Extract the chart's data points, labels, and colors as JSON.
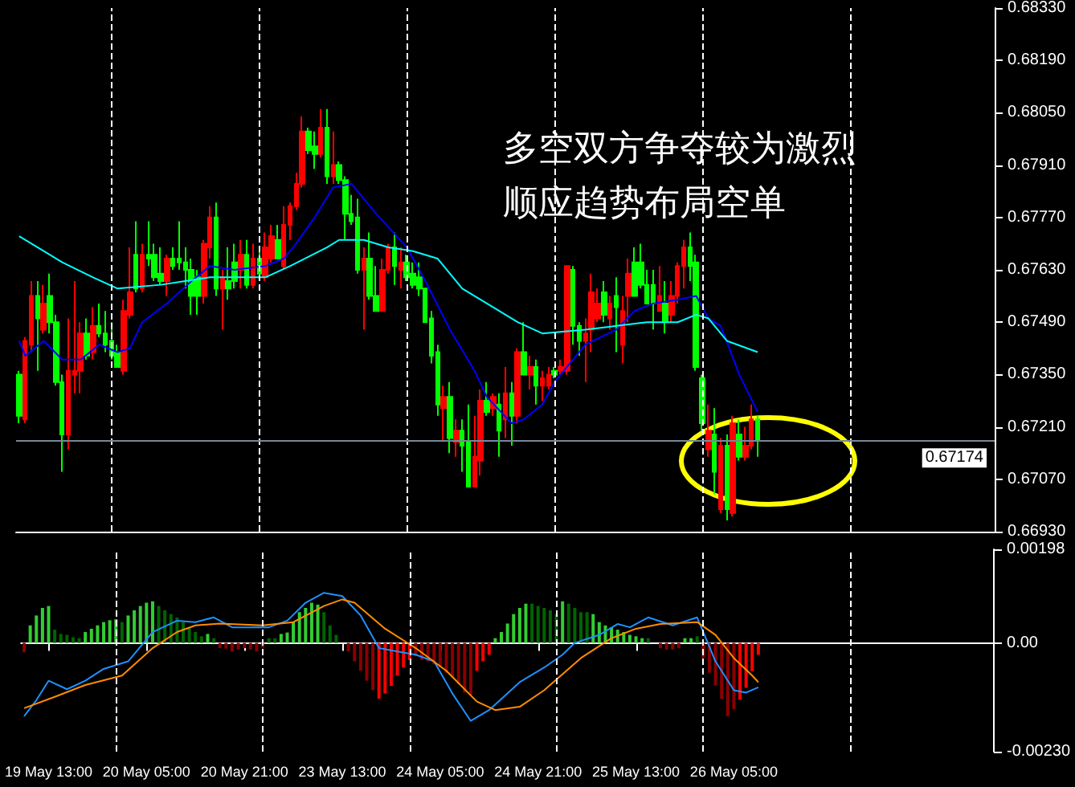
{
  "chart_data": [
    {
      "type": "candlestick",
      "categories": [
        null,
        null,
        null,
        null,
        null,
        null,
        null,
        null,
        null,
        null,
        null,
        null,
        null,
        null,
        null,
        null,
        null,
        null,
        null,
        null,
        null,
        null,
        null,
        null,
        null,
        null,
        null,
        null,
        null,
        null,
        null,
        null,
        null,
        null,
        null,
        null,
        null,
        null,
        null,
        null,
        null,
        null,
        null,
        null,
        null,
        null,
        null,
        null,
        null,
        null,
        null,
        null,
        null,
        null,
        null,
        null,
        null,
        null,
        null,
        null,
        null,
        null,
        null,
        null,
        null,
        null,
        null,
        null,
        null,
        null,
        null,
        null,
        null,
        null,
        null,
        null,
        null,
        null,
        null,
        null,
        null,
        null,
        null,
        null,
        null,
        null,
        null,
        null,
        null,
        null,
        null,
        null,
        null,
        null,
        null,
        null,
        null,
        null,
        null,
        null,
        null,
        null,
        null,
        null,
        null,
        null,
        null,
        null,
        null,
        null,
        null,
        null,
        null,
        null,
        null,
        null,
        null,
        null,
        null,
        null,
        null,
        null,
        null,
        null,
        null,
        null,
        null,
        null,
        null,
        null,
        null,
        null,
        null,
        null,
        null,
        null,
        null,
        null,
        null,
        null,
        null,
        null,
        null,
        null,
        null,
        null,
        null,
        null,
        null,
        null,
        null,
        null,
        null,
        null,
        null,
        null,
        null,
        null,
        null
      ],
      "ohlc": [
        [
          0.6735,
          0.6736,
          0.6722,
          0.6724
        ],
        [
          0.6723,
          0.6745,
          0.6722,
          0.6744
        ],
        [
          0.6743,
          0.676,
          0.6741,
          0.6756
        ],
        [
          0.6756,
          0.676,
          0.6736,
          0.675
        ],
        [
          0.6747,
          0.6759,
          0.6746,
          0.6754
        ],
        [
          0.6756,
          0.6762,
          0.6746,
          0.6749
        ],
        [
          0.6749,
          0.6751,
          0.6732,
          0.6733
        ],
        [
          0.6733,
          0.6735,
          0.6709,
          0.6719
        ],
        [
          0.6719,
          0.675,
          0.6715,
          0.6736
        ],
        [
          0.6735,
          0.676,
          0.673,
          0.6736
        ],
        [
          0.6736,
          0.6749,
          0.673,
          0.6746
        ],
        [
          0.6746,
          0.675,
          0.6739,
          0.674
        ],
        [
          0.6741,
          0.6753,
          0.6739,
          0.6748
        ],
        [
          0.6748,
          0.6754,
          0.6745,
          0.6746
        ],
        [
          0.6746,
          0.6752,
          0.6741,
          0.6743
        ],
        [
          0.6744,
          0.6749,
          0.6739,
          0.674
        ],
        [
          0.6741,
          0.6743,
          0.6737,
          0.6737
        ],
        [
          0.6736,
          0.6755,
          0.6735,
          0.6752
        ],
        [
          0.6751,
          0.6769,
          0.675,
          0.6757
        ],
        [
          0.6767,
          0.6776,
          0.6757,
          0.6758
        ],
        [
          0.6758,
          0.677,
          0.6757,
          0.6767
        ],
        [
          0.6767,
          0.6776,
          0.6764,
          0.6766
        ],
        [
          0.6767,
          0.677,
          0.676,
          0.6761
        ],
        [
          0.6762,
          0.6769,
          0.6759,
          0.676
        ],
        [
          0.676,
          0.6767,
          0.6756,
          0.6766
        ],
        [
          0.6766,
          0.6769,
          0.6763,
          0.6764
        ],
        [
          0.6766,
          0.6776,
          0.6763,
          0.6765
        ],
        [
          0.6765,
          0.6769,
          0.6758,
          0.6763
        ],
        [
          0.6763,
          0.6766,
          0.6751,
          0.6756
        ],
        [
          0.6761,
          0.6763,
          0.6751,
          0.6756
        ],
        [
          0.6756,
          0.6771,
          0.6754,
          0.677
        ],
        [
          0.6769,
          0.678,
          0.6766,
          0.6777
        ],
        [
          0.6777,
          0.6781,
          0.6756,
          0.6758
        ],
        [
          0.6758,
          0.6763,
          0.6747,
          0.6761
        ],
        [
          0.676,
          0.6769,
          0.6755,
          0.6758
        ],
        [
          0.6765,
          0.677,
          0.6758,
          0.676
        ],
        [
          0.6763,
          0.6771,
          0.6758,
          0.6767
        ],
        [
          0.6767,
          0.6771,
          0.6758,
          0.6759
        ],
        [
          0.6759,
          0.677,
          0.6758,
          0.6766
        ],
        [
          0.6766,
          0.6769,
          0.6761,
          0.6762
        ],
        [
          0.6761,
          0.6773,
          0.676,
          0.6769
        ],
        [
          0.6766,
          0.6775,
          0.6765,
          0.6772
        ],
        [
          0.6771,
          0.6775,
          0.6766,
          0.6766
        ],
        [
          0.6764,
          0.678,
          0.6763,
          0.6775
        ],
        [
          0.6775,
          0.6781,
          0.6771,
          0.678
        ],
        [
          0.678,
          0.6789,
          0.6779,
          0.6786
        ],
        [
          0.6786,
          0.6804,
          0.6785,
          0.68
        ],
        [
          0.68,
          0.6801,
          0.6794,
          0.6795
        ],
        [
          0.6796,
          0.68,
          0.679,
          0.6794
        ],
        [
          0.6794,
          0.6806,
          0.6793,
          0.6801
        ],
        [
          0.6801,
          0.6806,
          0.6786,
          0.6788
        ],
        [
          0.6788,
          0.68,
          0.6786,
          0.6791
        ],
        [
          0.6791,
          0.6792,
          0.6786,
          0.6787
        ],
        [
          0.6787,
          0.6788,
          0.6771,
          0.6778
        ],
        [
          0.6778,
          0.6783,
          0.6775,
          0.6776
        ],
        [
          0.6777,
          0.6782,
          0.6762,
          0.6763
        ],
        [
          0.6763,
          0.6769,
          0.6747,
          0.6766
        ],
        [
          0.6766,
          0.6773,
          0.6755,
          0.6756
        ],
        [
          0.6756,
          0.6764,
          0.6752,
          0.6752
        ],
        [
          0.6752,
          0.6766,
          0.6752,
          0.6763
        ],
        [
          0.6763,
          0.677,
          0.6762,
          0.6769
        ],
        [
          0.6769,
          0.6773,
          0.6759,
          0.6764
        ],
        [
          0.6763,
          0.6769,
          0.6758,
          0.6765
        ],
        [
          0.6765,
          0.6767,
          0.676,
          0.6761
        ],
        [
          0.6762,
          0.6765,
          0.6758,
          0.6759
        ],
        [
          0.6761,
          0.6765,
          0.6756,
          0.6758
        ],
        [
          0.6758,
          0.6758,
          0.6749,
          0.6749
        ],
        [
          0.675,
          0.6752,
          0.6738,
          0.674
        ],
        [
          0.6741,
          0.6743,
          0.6724,
          0.6727
        ],
        [
          0.6726,
          0.6732,
          0.6717,
          0.6729
        ],
        [
          0.6729,
          0.6733,
          0.6714,
          0.6718
        ],
        [
          0.6717,
          0.6723,
          0.6713,
          0.672
        ],
        [
          0.672,
          0.6723,
          0.6709,
          0.6716
        ],
        [
          0.6717,
          0.6727,
          0.6705,
          0.6705
        ],
        [
          0.6705,
          0.6724,
          0.6705,
          0.6713
        ],
        [
          0.6712,
          0.6731,
          0.6708,
          0.6728
        ],
        [
          0.6728,
          0.6733,
          0.6724,
          0.6725
        ],
        [
          0.6726,
          0.673,
          0.6724,
          0.6729
        ],
        [
          0.6727,
          0.673,
          0.6713,
          0.672
        ],
        [
          0.6723,
          0.6737,
          0.6718,
          0.673
        ],
        [
          0.673,
          0.6733,
          0.6716,
          0.6724
        ],
        [
          0.6724,
          0.6742,
          0.6722,
          0.6741
        ],
        [
          0.6741,
          0.6749,
          0.6735,
          0.6735
        ],
        [
          0.6735,
          0.674,
          0.6731,
          0.6737
        ],
        [
          0.6737,
          0.6739,
          0.6727,
          0.6732
        ],
        [
          0.6732,
          0.6736,
          0.6728,
          0.6734
        ],
        [
          0.6732,
          0.6737,
          0.6731,
          0.6735
        ],
        [
          0.6736,
          0.6737,
          0.6734,
          0.6735
        ],
        [
          0.6736,
          0.6739,
          0.6735,
          0.6737
        ],
        [
          0.6736,
          0.6764,
          0.6735,
          0.6764
        ],
        [
          0.6763,
          0.6764,
          0.6743,
          0.6748
        ],
        [
          0.6748,
          0.6749,
          0.674,
          0.6744
        ],
        [
          0.6744,
          0.675,
          0.6733,
          0.6746
        ],
        [
          0.6747,
          0.6762,
          0.6741,
          0.6757
        ],
        [
          0.675,
          0.6758,
          0.6749,
          0.6754
        ],
        [
          0.6757,
          0.676,
          0.6749,
          0.6751
        ],
        [
          0.675,
          0.6756,
          0.6747,
          0.6754
        ],
        [
          0.6756,
          0.6761,
          0.6741,
          0.6753
        ],
        [
          0.6743,
          0.6756,
          0.6738,
          0.6752
        ],
        [
          0.6756,
          0.6766,
          0.6749,
          0.6762
        ],
        [
          0.6765,
          0.6769,
          0.6756,
          0.6756
        ],
        [
          0.6765,
          0.677,
          0.6758,
          0.6759
        ],
        [
          0.6759,
          0.6763,
          0.6754,
          0.6754
        ],
        [
          0.6759,
          0.6763,
          0.6747,
          0.6754
        ],
        [
          0.6752,
          0.6764,
          0.6752,
          0.6756
        ],
        [
          0.6754,
          0.676,
          0.6746,
          0.6749
        ],
        [
          0.6751,
          0.676,
          0.6749,
          0.6756
        ],
        [
          0.6756,
          0.6765,
          0.6754,
          0.6764
        ],
        [
          0.6764,
          0.6771,
          0.6758,
          0.6769
        ],
        [
          0.6769,
          0.6773,
          0.676,
          0.6764
        ],
        [
          0.6765,
          0.6767,
          0.6736,
          0.6737
        ],
        [
          0.6734,
          0.6735,
          0.672,
          0.6722
        ],
        [
          0.6715,
          0.6727,
          0.6713,
          0.672
        ],
        [
          0.6719,
          0.6726,
          0.6703,
          0.6709
        ],
        [
          0.6699,
          0.6718,
          0.6698,
          0.6716
        ],
        [
          0.6716,
          0.6719,
          0.6696,
          0.6699
        ],
        [
          0.6698,
          0.6724,
          0.6697,
          0.6722
        ],
        [
          0.6719,
          0.6723,
          0.6712,
          0.6713
        ],
        [
          0.6713,
          0.6721,
          0.6712,
          0.6716
        ],
        [
          0.6716,
          0.6727,
          0.6715,
          0.6723
        ],
        [
          0.6723,
          0.6724,
          0.6713,
          0.67174
        ],
        null,
        null,
        null,
        null,
        null,
        null,
        null,
        null,
        null,
        null,
        null,
        null,
        null,
        null,
        null,
        null,
        null,
        null,
        null,
        null,
        null,
        null,
        null,
        null,
        null,
        null,
        null,
        null,
        null,
        null,
        null,
        null,
        null,
        null,
        null,
        null,
        null,
        null
      ],
      "colors": [
        "#00ff00",
        "#ff0000",
        "#ff0000",
        "#00ff00",
        "#ff0000",
        "#00ff00",
        "#00ff00",
        "#00ff00",
        "#ff0000",
        "#ff0000",
        "#ff0000",
        "#00ff00",
        "#ff0000",
        "#00ff00",
        "#00ff00",
        "#00ff00",
        "#00ff00",
        "#ff0000",
        "#ff0000",
        "#00ff00",
        "#ff0000",
        "#00ff00",
        "#00ff00",
        "#00ff00",
        "#ff0000",
        "#00ff00",
        "#00ff00",
        "#00ff00",
        "#00ff00",
        "#00ff00",
        "#ff0000",
        "#ff0000",
        "#00ff00",
        "#ff0000",
        "#00ff00",
        "#00ff00",
        "#ff0000",
        "#00ff00",
        "#ff0000",
        "#00ff00",
        "#ff0000",
        "#ff0000",
        "#00ff00",
        "#ff0000",
        "#ff0000",
        "#ff0000",
        "#ff0000",
        "#00ff00",
        "#00ff00",
        "#ff0000",
        "#00ff00",
        "#ff0000",
        "#00ff00",
        "#00ff00",
        "#00ff00",
        "#00ff00",
        "#ff0000",
        "#00ff00",
        "#00ff00",
        "#ff0000",
        "#ff0000",
        "#00ff00",
        "#ff0000",
        "#00ff00",
        "#00ff00",
        "#00ff00",
        "#00ff00",
        "#00ff00",
        "#00ff00",
        "#ff0000",
        "#00ff00",
        "#ff0000",
        "#00ff00",
        "#00ff00",
        "#ff0000",
        "#ff0000",
        "#00ff00",
        "#ff0000",
        "#00ff00",
        "#ff0000",
        "#00ff00",
        "#ff0000",
        "#00ff00",
        "#ff0000",
        "#00ff00",
        "#ff0000",
        "#ff0000",
        "#00ff00",
        "#ff0000",
        "#ff0000",
        "#00ff00",
        "#00ff00",
        "#ff0000",
        "#ff0000",
        "#ff0000",
        "#00ff00",
        "#ff0000",
        "#00ff00",
        "#ff0000",
        "#ff0000",
        "#00ff00",
        "#00ff00",
        "#00ff00",
        "#00ff00",
        "#ff0000",
        "#00ff00",
        "#ff0000",
        "#ff0000",
        "#ff0000",
        "#00ff00",
        "#00ff00",
        "#00ff00",
        "#ff0000",
        "#00ff00",
        "#ff0000",
        "#00ff00",
        "#ff0000",
        "#00ff00",
        "#ff0000",
        "#ff0000",
        "#00ff00",
        null,
        null,
        null,
        null,
        null,
        null,
        null,
        null,
        null,
        null,
        null,
        null,
        null,
        null,
        null,
        null,
        null,
        null,
        null,
        null,
        null,
        null,
        null,
        null,
        null,
        null,
        null,
        null,
        null,
        null,
        null,
        null,
        null,
        null,
        null,
        null,
        null,
        null
      ],
      "series": [
        {
          "type": "line",
          "color": "#0000ff",
          "values": [
            0.6744,
            0.674,
            null,
            null,
            0.6744,
            null,
            null,
            0.6739,
            null,
            null,
            0.6739,
            null,
            null,
            0.6743,
            null,
            null,
            0.6741,
            null,
            0.6742,
            null,
            0.6749,
            null,
            null,
            null,
            0.6754,
            null,
            null,
            null,
            0.676,
            null,
            null,
            0.6764,
            null,
            null,
            null,
            0.6763,
            null,
            null,
            null,
            null,
            0.6764,
            null,
            null,
            0.6766,
            null,
            0.677,
            null,
            null,
            0.6777,
            null,
            null,
            0.6785,
            null,
            null,
            0.6786,
            null,
            null,
            null,
            0.6778,
            null,
            null,
            null,
            null,
            0.6769,
            null,
            null,
            0.676,
            null,
            null,
            null,
            0.6747,
            null,
            null,
            null,
            0.6736,
            null,
            0.6729,
            null,
            null,
            null,
            0.6722,
            null,
            0.6723,
            null,
            null,
            0.6727,
            null,
            0.6733,
            null,
            null,
            null,
            null,
            0.6743,
            null,
            null,
            null,
            null,
            0.6747,
            null,
            null,
            0.6752,
            null,
            null,
            0.6754,
            null,
            null,
            null,
            0.6755,
            null,
            null,
            0.6756,
            null,
            0.675,
            null,
            0.6748,
            null,
            null,
            0.6735,
            null,
            null,
            0.6725,
            null,
            null,
            null,
            null,
            null,
            null,
            null,
            null,
            null,
            null,
            null,
            null,
            null,
            null,
            null,
            null,
            null,
            null,
            null,
            null,
            null,
            null,
            null,
            null,
            null,
            null,
            null,
            null,
            null,
            null,
            null,
            null,
            null,
            null,
            null,
            null,
            null,
            null
          ]
        },
        {
          "type": "line",
          "color": "#00ffff",
          "values": [
            0.6772,
            null,
            null,
            null,
            0.6768,
            null,
            null,
            0.6765,
            null,
            null,
            null,
            null,
            0.6761,
            null,
            null,
            null,
            0.6758,
            null,
            null,
            null,
            null,
            null,
            null,
            0.6759,
            null,
            null,
            null,
            null,
            null,
            null,
            null,
            0.6761,
            null,
            null,
            null,
            null,
            null,
            null,
            null,
            null,
            0.6761,
            null,
            null,
            null,
            0.6764,
            null,
            null,
            null,
            null,
            null,
            0.6769,
            null,
            0.6771,
            null,
            null,
            null,
            0.6771,
            null,
            null,
            null,
            0.6769,
            null,
            null,
            null,
            0.6768,
            null,
            null,
            null,
            0.6766,
            null,
            null,
            null,
            0.6758,
            null,
            null,
            null,
            0.6754,
            null,
            null,
            null,
            null,
            0.6749,
            null,
            null,
            null,
            0.6746,
            null,
            null,
            null,
            null,
            null,
            null,
            0.6747,
            null,
            null,
            null,
            null,
            0.6748,
            null,
            null,
            null,
            null,
            0.6749,
            null,
            null,
            null,
            null,
            0.6749,
            null,
            null,
            0.6751,
            null,
            0.675,
            null,
            null,
            0.6744,
            null,
            null,
            null,
            null,
            0.6741,
            null,
            null,
            null,
            null,
            null,
            null,
            null,
            null,
            null,
            null,
            null,
            null,
            null,
            null,
            null,
            null,
            null,
            null,
            null,
            null,
            null,
            null,
            null,
            null,
            null,
            null,
            null,
            null,
            null,
            null,
            null,
            null,
            null,
            null,
            null,
            null,
            null,
            null
          ]
        }
      ],
      "marker": "none",
      "ylim": [
        0.6693,
        0.6833
      ],
      "yticks": [
        {
          "value": 0.6693,
          "label": "0.66930"
        },
        {
          "value": 0.6707,
          "label": "0.67070"
        },
        {
          "value": 0.6721,
          "label": "0.67210"
        },
        {
          "value": 0.6735,
          "label": "0.67350"
        },
        {
          "value": 0.6749,
          "label": "0.67490"
        },
        {
          "value": 0.6763,
          "label": "0.67630"
        },
        {
          "value": 0.6777,
          "label": "0.67770"
        },
        {
          "value": 0.6791,
          "label": "0.67910"
        },
        {
          "value": 0.6805,
          "label": "0.68050"
        },
        {
          "value": 0.6819,
          "label": "0.68190"
        },
        {
          "value": 0.6833,
          "label": "0.68330"
        }
      ],
      "tick_labels": "y",
      "ref_lines": [
        {
          "axis": "y",
          "value": 0.67174,
          "label": "0.67174",
          "color": "#778899"
        }
      ],
      "annotations": [
        "多空双方争夺较为激烈",
        "顺应趋势布局空单"
      ]
    },
    {
      "type": "bar",
      "categories": [
        null,
        null,
        null,
        null,
        "19 May 13:00",
        null,
        null,
        null,
        null,
        null,
        null,
        null,
        null,
        null,
        null,
        null,
        null,
        null,
        null,
        null,
        "20 May 05:00",
        null,
        null,
        null,
        null,
        null,
        null,
        null,
        null,
        null,
        null,
        null,
        null,
        null,
        null,
        null,
        "20 May 21:00",
        null,
        null,
        null,
        null,
        null,
        null,
        null,
        null,
        null,
        null,
        null,
        null,
        null,
        null,
        null,
        "23 May 13:00",
        null,
        null,
        null,
        null,
        null,
        null,
        null,
        null,
        null,
        null,
        null,
        null,
        null,
        null,
        null,
        "24 May 05:00",
        null,
        null,
        null,
        null,
        null,
        null,
        null,
        null,
        null,
        null,
        null,
        null,
        null,
        null,
        null,
        "24 May 21:00",
        null,
        null,
        null,
        null,
        null,
        null,
        null,
        null,
        null,
        null,
        null,
        null,
        null,
        null,
        null,
        "25 May 13:00",
        null,
        null,
        null,
        null,
        null,
        null,
        null,
        null,
        null,
        null,
        null,
        null,
        null,
        null,
        null,
        "26 May 05:00",
        null,
        null,
        null,
        null,
        null,
        null,
        null,
        null,
        null,
        null,
        null,
        null,
        null,
        null,
        null,
        null,
        null,
        null,
        null,
        null,
        null,
        null,
        null,
        null,
        null,
        null,
        null,
        null,
        null,
        null,
        null,
        null,
        null,
        null,
        null,
        null,
        null,
        null,
        null,
        null,
        null,
        null
      ],
      "series": [
        {
          "values": [
            -0.0002,
            0.00037,
            0.00058,
            0.00074,
            0.00078,
            0.00028,
            0.00019,
            0.00017,
            0.00012,
            0.0001,
            0.00023,
            0.0003,
            0.00037,
            0.00044,
            0.00048,
            0.0005,
            0.00044,
            0.00058,
            0.00069,
            0.00078,
            0.00085,
            0.00088,
            0.00078,
            0.00069,
            0.00061,
            0.00054,
            0.00044,
            0.00033,
            0.00023,
            0.00014,
            0.00019,
            0.0001,
            -0.00011,
            -0.00012,
            -0.00018,
            -0.00014,
            -0.00011,
            -0.00014,
            -0.00018,
            -0.0001,
            0.0001,
            0.0001,
            0.00019,
            0.00022,
            0.00044,
            0.00065,
            0.00074,
            0.00085,
            0.00081,
            0.00065,
            0.00037,
            0.00017,
            0,
            -0.00018,
            -0.00039,
            -0.00059,
            -0.0008,
            -0.001,
            -0.00118,
            -0.00107,
            -0.00091,
            -0.00069,
            -0.00052,
            -0.00036,
            -0.00028,
            -0.00036,
            -0.00039,
            -0.00045,
            -0.00052,
            -0.00063,
            -0.00073,
            -0.00087,
            -0.00105,
            -0.0011,
            -0.00059,
            -0.00039,
            -0.00025,
            0.0001,
            0.00023,
            0.00041,
            0.00061,
            0.00074,
            0.00083,
            0.00083,
            0.00078,
            0.00074,
            0.00069,
            0.00061,
            0.00088,
            0.00083,
            0.00074,
            0.00065,
            0.00065,
            0.00061,
            0.00044,
            0.00037,
            0.00033,
            0.00028,
            0.00023,
            0.00017,
            0.00014,
            0.0001,
            0.0001,
            0,
            -0.00011,
            -0.00014,
            -0.00014,
            -0.00011,
            0.0001,
            0.0001,
            0.00014,
            -0.00032,
            -0.00063,
            -0.0009,
            -0.00118,
            -0.00155,
            -0.0014,
            -0.0012,
            -0.00095,
            -0.0006,
            -0.00025,
            null,
            null,
            null,
            null,
            null,
            null,
            null,
            null,
            null,
            null,
            null,
            null,
            null,
            null,
            null,
            null,
            null,
            null,
            null,
            null,
            null,
            null,
            null,
            null,
            null,
            null,
            null,
            null,
            null,
            null,
            null,
            null,
            null,
            null,
            null,
            null,
            null,
            null
          ],
          "colors": [
            "#8b0000",
            "#32cd32",
            "#32cd32",
            "#32cd32",
            "#32cd32",
            "#006400",
            "#006400",
            "#006400",
            "#006400",
            "#006400",
            "#32cd32",
            "#32cd32",
            "#32cd32",
            "#32cd32",
            "#32cd32",
            "#32cd32",
            "#006400",
            "#32cd32",
            "#32cd32",
            "#32cd32",
            "#32cd32",
            "#32cd32",
            "#006400",
            "#006400",
            "#006400",
            "#006400",
            "#006400",
            "#006400",
            "#006400",
            "#006400",
            "#32cd32",
            "#006400",
            "#8b0000",
            "#8b0000",
            "#8b0000",
            "#8b0000",
            "#8b0000",
            "#8b0000",
            "#8b0000",
            "#8b0000",
            "#006400",
            "#006400",
            "#32cd32",
            "#32cd32",
            "#32cd32",
            "#32cd32",
            "#32cd32",
            "#32cd32",
            "#32cd32",
            "#006400",
            "#006400",
            "#006400",
            "#006400",
            "#8b0000",
            "#8b0000",
            "#8b0000",
            "#8b0000",
            "#8b0000",
            "#ff0000",
            "#ff0000",
            "#ff0000",
            "#ff0000",
            "#ff0000",
            "#ff0000",
            "#8b0000",
            "#8b0000",
            "#8b0000",
            "#8b0000",
            "#8b0000",
            "#8b0000",
            "#8b0000",
            "#8b0000",
            "#8b0000",
            "#8b0000",
            "#ff0000",
            "#ff0000",
            "#ff0000",
            "#32cd32",
            "#32cd32",
            "#32cd32",
            "#32cd32",
            "#32cd32",
            "#32cd32",
            "#006400",
            "#006400",
            "#006400",
            "#006400",
            "#006400",
            "#32cd32",
            "#006400",
            "#006400",
            "#006400",
            "#006400",
            "#32cd32",
            "#32cd32",
            "#32cd32",
            "#32cd32",
            "#32cd32",
            "#32cd32",
            "#32cd32",
            "#32cd32",
            "#32cd32",
            "#006400",
            "#006400",
            "#8b0000",
            "#8b0000",
            "#8b0000",
            "#8b0000",
            "#32cd32",
            "#32cd32",
            "#006400",
            "#8b0000",
            "#8b0000",
            "#8b0000",
            "#8b0000",
            "#8b0000",
            "#8b0000",
            "#ff0000",
            "#ff0000",
            "#ff0000",
            "#ff0000",
            null,
            null,
            null,
            null,
            null,
            null,
            null,
            null,
            null,
            null,
            null,
            null,
            null,
            null,
            null,
            null,
            null,
            null,
            null,
            null,
            null,
            null,
            null,
            null,
            null,
            null,
            null,
            null,
            null,
            null,
            null,
            null,
            null,
            null,
            null,
            null,
            null,
            null
          ]
        },
        {
          "type": "line",
          "color": "#1e90ff",
          "values": [
            -0.00155,
            null,
            -0.00121,
            null,
            -0.0008,
            null,
            null,
            -0.00098,
            null,
            null,
            -0.0008,
            null,
            null,
            -0.00055,
            null,
            null,
            null,
            -0.00039,
            null,
            null,
            null,
            0.00023,
            null,
            null,
            null,
            0.00047,
            null,
            null,
            0.00044,
            null,
            null,
            0.00054,
            null,
            null,
            0.00033,
            null,
            null,
            null,
            null,
            null,
            0.00033,
            null,
            null,
            0.00047,
            null,
            null,
            0.00085,
            null,
            null,
            0.00106,
            null,
            null,
            0.00099,
            null,
            null,
            0.00058,
            null,
            null,
            -0.00011,
            null,
            null,
            null,
            null,
            null,
            -0.00025,
            null,
            null,
            -0.00039,
            null,
            null,
            -0.00107,
            null,
            null,
            -0.00165,
            null,
            null,
            -0.00142,
            null,
            null,
            null,
            null,
            -0.00083,
            null,
            null,
            null,
            -0.00052,
            null,
            null,
            -0.00025,
            null,
            0,
            null,
            null,
            null,
            0.00017,
            null,
            null,
            0.0004,
            null,
            0.00033,
            null,
            null,
            0.00054,
            null,
            null,
            null,
            0.00037,
            null,
            null,
            null,
            0.00054,
            null,
            null,
            -0.00039,
            null,
            null,
            -0.001,
            null,
            -0.00105,
            null,
            -0.00094,
            null,
            null,
            null,
            null,
            null,
            null,
            null,
            null,
            null,
            null,
            null,
            null,
            null,
            null,
            null,
            null,
            null,
            null,
            null,
            null,
            null,
            null,
            null,
            null,
            null,
            null,
            null,
            null,
            null,
            null,
            null,
            null,
            null,
            null,
            null,
            null,
            null,
            null
          ]
        },
        {
          "type": "line",
          "color": "#ff8c00",
          "values": [
            -0.00138,
            null,
            null,
            null,
            null,
            -0.00114,
            null,
            null,
            null,
            null,
            -0.00089,
            null,
            null,
            null,
            null,
            null,
            -0.00069,
            null,
            null,
            null,
            null,
            -0.00011,
            null,
            null,
            null,
            0.00023,
            null,
            null,
            0.00037,
            null,
            null,
            null,
            0.00041,
            null,
            null,
            null,
            null,
            null,
            null,
            0.00037,
            null,
            null,
            null,
            null,
            0.00044,
            null,
            null,
            null,
            null,
            0.00078,
            null,
            null,
            0.00092,
            null,
            0.00085,
            null,
            null,
            null,
            null,
            0.0003,
            null,
            null,
            null,
            null,
            -0.00011,
            null,
            null,
            null,
            null,
            -0.00059,
            null,
            null,
            null,
            null,
            -0.00124,
            null,
            null,
            -0.00142,
            null,
            null,
            null,
            -0.00135,
            null,
            null,
            null,
            -0.001,
            null,
            null,
            -0.00066,
            null,
            null,
            -0.00032,
            null,
            null,
            null,
            null,
            0.0001,
            null,
            null,
            null,
            0.0003,
            null,
            null,
            null,
            0.0004,
            null,
            null,
            null,
            null,
            null,
            0.00044,
            null,
            null,
            0.00017,
            null,
            null,
            -0.00032,
            null,
            null,
            -0.00069,
            -0.00083,
            null,
            null,
            null,
            null,
            null,
            null,
            null,
            null,
            null,
            null,
            null,
            null,
            null,
            null,
            null,
            null,
            null,
            null,
            null,
            null,
            null,
            null,
            null,
            null,
            null,
            null,
            null,
            null,
            null,
            null,
            null,
            null,
            null,
            null,
            null,
            null,
            null,
            null
          ]
        }
      ],
      "marker": "none",
      "ylim": [
        -0.0023,
        0.00198
      ],
      "yticks": [
        {
          "value": -0.0023,
          "label": "-0.00230"
        },
        {
          "value": 0,
          "label": "0.00"
        },
        0.00198
      ]
    }
  ]
}
